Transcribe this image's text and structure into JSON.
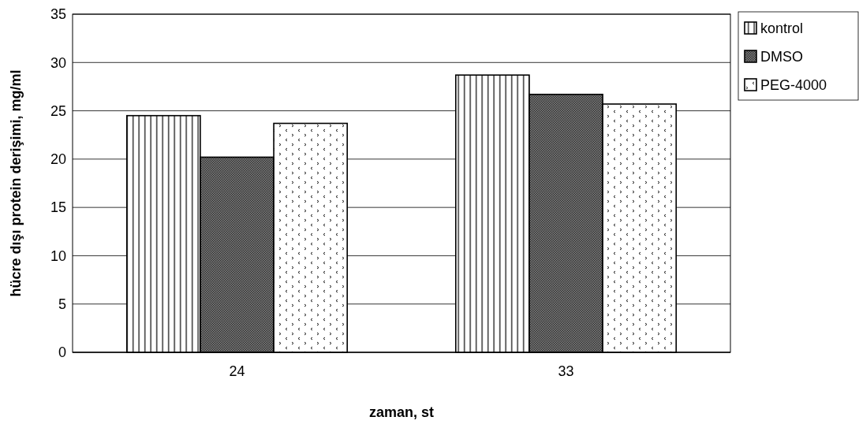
{
  "chart_data": {
    "type": "bar",
    "xlabel": "zaman, st",
    "ylabel": "hücre dışı protein derişimi, mg/ml",
    "categories": [
      "24",
      "33"
    ],
    "series": [
      {
        "name": "kontrol",
        "color": "#ffffff",
        "values": [
          24.5,
          28.7
        ]
      },
      {
        "name": "DMSO",
        "color": "#7f7f7f",
        "values": [
          20.2,
          26.7
        ]
      },
      {
        "name": "PEG-4000",
        "color": "#ffffff",
        "values": [
          23.7,
          25.7
        ]
      }
    ],
    "ylim": [
      0,
      35
    ],
    "yticks": [
      0,
      5,
      10,
      15,
      20,
      25,
      30,
      35
    ],
    "grid": "y",
    "legend": "right"
  }
}
